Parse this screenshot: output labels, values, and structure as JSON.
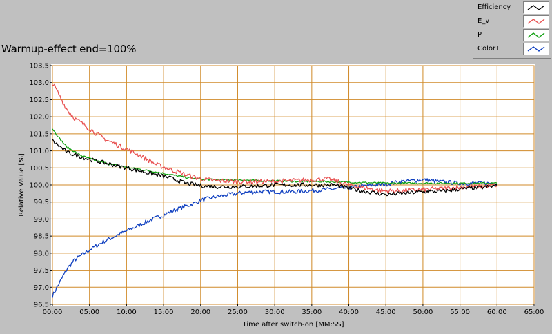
{
  "title": "Warmup-effect end=100%",
  "chart_data": {
    "type": "line",
    "xlabel": "Time after switch-on [MM:SS]",
    "ylabel": "Relative Value [%]",
    "xlim": [
      0,
      65
    ],
    "ylim": [
      96.5,
      103.5
    ],
    "x_ticks": [
      "00:00",
      "05:00",
      "10:00",
      "15:00",
      "20:00",
      "25:00",
      "30:00",
      "35:00",
      "40:00",
      "45:00",
      "50:00",
      "55:00",
      "60:00",
      "65:00"
    ],
    "y_ticks": [
      "96.5",
      "97.0",
      "97.5",
      "98.0",
      "98.5",
      "99.0",
      "99.5",
      "100.0",
      "100.5",
      "101.0",
      "101.5",
      "102.0",
      "102.5",
      "103.0",
      "103.5"
    ],
    "grid": true,
    "legend_position": "top-right",
    "x_unit": "minutes",
    "series": [
      {
        "name": "Efficiency",
        "color": "#000000",
        "points": [
          [
            0,
            101.3
          ],
          [
            2,
            100.95
          ],
          [
            5,
            100.75
          ],
          [
            8,
            100.6
          ],
          [
            10,
            100.5
          ],
          [
            12,
            100.4
          ],
          [
            14,
            100.3
          ],
          [
            16,
            100.2
          ],
          [
            18,
            100.05
          ],
          [
            20,
            99.98
          ],
          [
            22,
            99.95
          ],
          [
            25,
            99.95
          ],
          [
            28,
            99.97
          ],
          [
            30,
            100.0
          ],
          [
            32,
            100.0
          ],
          [
            35,
            100.0
          ],
          [
            38,
            100.0
          ],
          [
            40,
            99.9
          ],
          [
            42,
            99.82
          ],
          [
            44,
            99.75
          ],
          [
            45,
            99.72
          ],
          [
            47,
            99.75
          ],
          [
            50,
            99.8
          ],
          [
            53,
            99.82
          ],
          [
            55,
            99.88
          ],
          [
            58,
            99.92
          ],
          [
            60,
            99.98
          ]
        ]
      },
      {
        "name": "E_v",
        "color": "#e85050",
        "points": [
          [
            0,
            103.0
          ],
          [
            1,
            102.6
          ],
          [
            2,
            102.2
          ],
          [
            3,
            101.95
          ],
          [
            5,
            101.65
          ],
          [
            7,
            101.35
          ],
          [
            9,
            101.15
          ],
          [
            10,
            101.05
          ],
          [
            12,
            100.85
          ],
          [
            14,
            100.6
          ],
          [
            16,
            100.45
          ],
          [
            18,
            100.3
          ],
          [
            20,
            100.18
          ],
          [
            22,
            100.12
          ],
          [
            25,
            100.1
          ],
          [
            28,
            100.1
          ],
          [
            30,
            100.1
          ],
          [
            32,
            100.12
          ],
          [
            35,
            100.15
          ],
          [
            37,
            100.18
          ],
          [
            40,
            100.0
          ],
          [
            42,
            99.92
          ],
          [
            44,
            99.85
          ],
          [
            45,
            99.82
          ],
          [
            47,
            99.83
          ],
          [
            50,
            99.86
          ],
          [
            53,
            99.9
          ],
          [
            55,
            99.93
          ],
          [
            58,
            99.96
          ],
          [
            60,
            100.0
          ]
        ]
      },
      {
        "name": "P",
        "color": "#10a010",
        "points": [
          [
            0,
            101.65
          ],
          [
            1,
            101.35
          ],
          [
            2,
            101.1
          ],
          [
            4,
            100.85
          ],
          [
            6,
            100.7
          ],
          [
            8,
            100.6
          ],
          [
            10,
            100.52
          ],
          [
            12,
            100.45
          ],
          [
            14,
            100.38
          ],
          [
            16,
            100.3
          ],
          [
            18,
            100.22
          ],
          [
            20,
            100.17
          ],
          [
            22,
            100.15
          ],
          [
            25,
            100.15
          ],
          [
            28,
            100.12
          ],
          [
            30,
            100.12
          ],
          [
            33,
            100.1
          ],
          [
            36,
            100.1
          ],
          [
            40,
            100.08
          ],
          [
            45,
            100.05
          ],
          [
            50,
            100.05
          ],
          [
            55,
            100.05
          ],
          [
            60,
            100.05
          ]
        ]
      },
      {
        "name": "ColorT",
        "color": "#1040c0",
        "points": [
          [
            0,
            96.75
          ],
          [
            1,
            97.15
          ],
          [
            2,
            97.55
          ],
          [
            3,
            97.8
          ],
          [
            5,
            98.1
          ],
          [
            7,
            98.35
          ],
          [
            9,
            98.55
          ],
          [
            11,
            98.75
          ],
          [
            13,
            98.95
          ],
          [
            15,
            99.12
          ],
          [
            17,
            99.3
          ],
          [
            19,
            99.45
          ],
          [
            20,
            99.55
          ],
          [
            22,
            99.65
          ],
          [
            24,
            99.72
          ],
          [
            26,
            99.78
          ],
          [
            28,
            99.8
          ],
          [
            30,
            99.8
          ],
          [
            32,
            99.8
          ],
          [
            34,
            99.82
          ],
          [
            36,
            99.85
          ],
          [
            38,
            99.88
          ],
          [
            40,
            99.92
          ],
          [
            42,
            99.97
          ],
          [
            45,
            100.02
          ],
          [
            47,
            100.1
          ],
          [
            50,
            100.15
          ],
          [
            52,
            100.1
          ],
          [
            55,
            100.05
          ],
          [
            58,
            100.05
          ],
          [
            60,
            100.05
          ]
        ]
      }
    ]
  }
}
